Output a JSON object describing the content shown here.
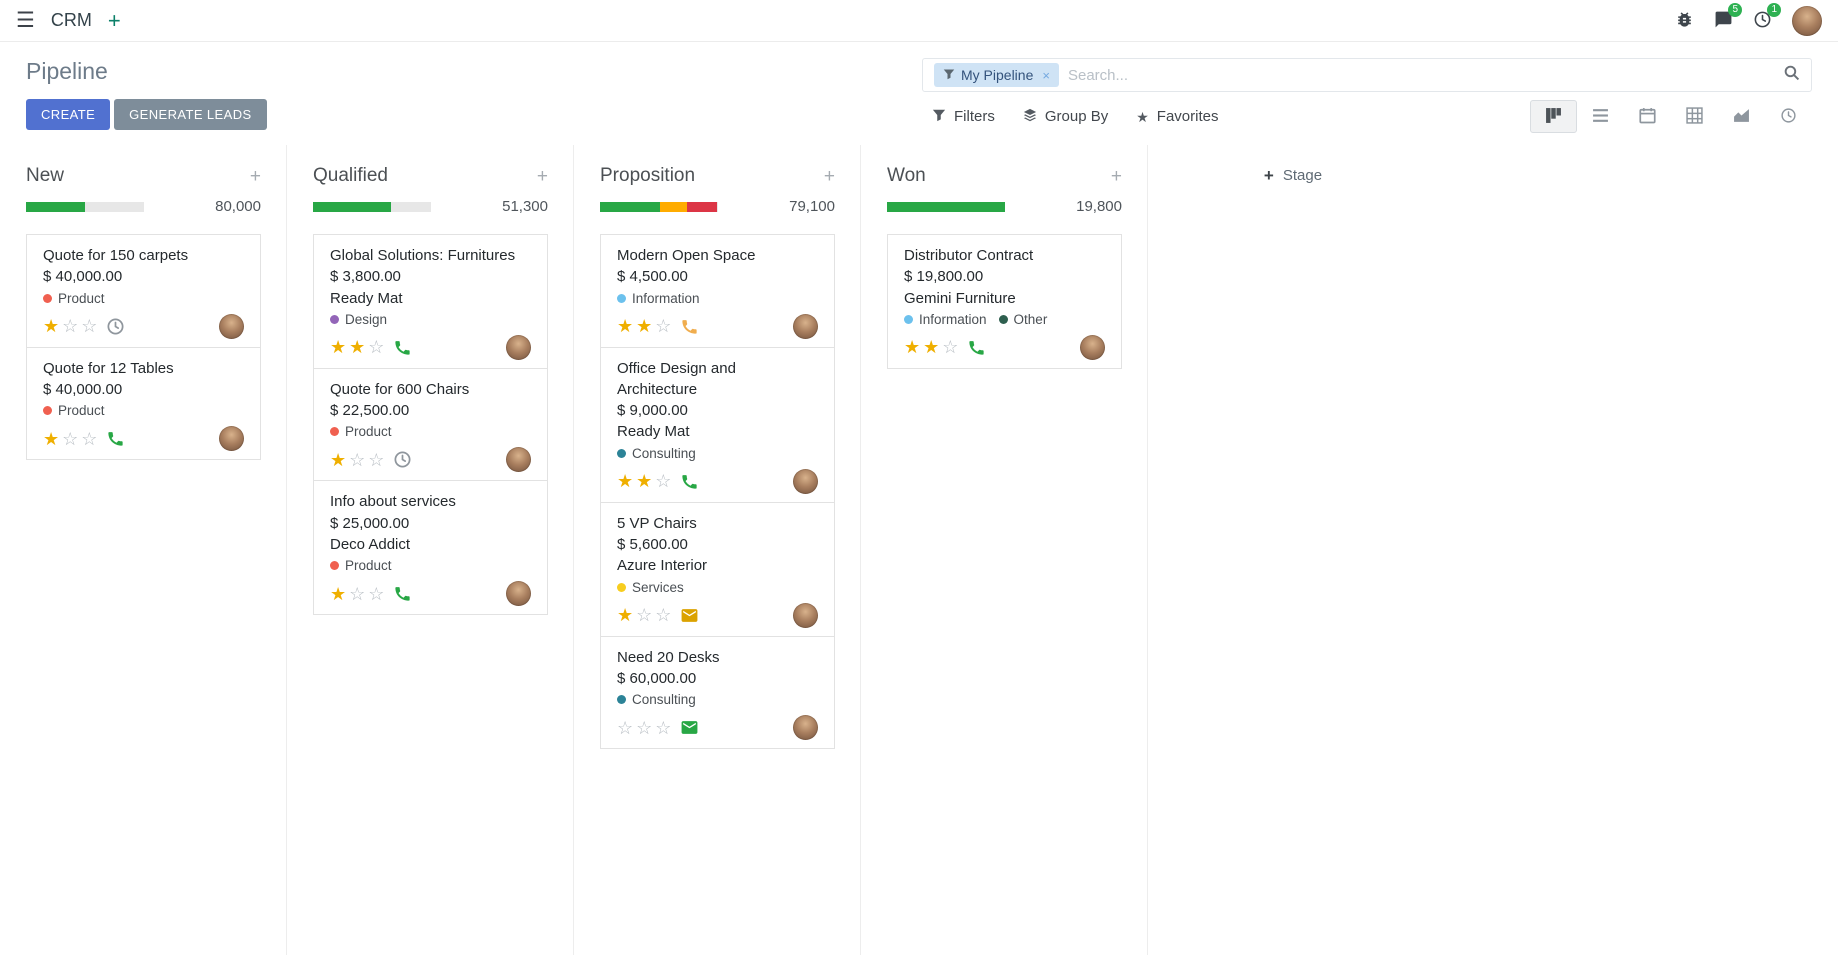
{
  "colors": {
    "primary": "#5171d0",
    "secondary_button": "#7e8d9a",
    "success": "#28a745",
    "warning": "#ffac00",
    "danger": "#dc3545",
    "star_gold": "#efaf00",
    "facet_bg": "#cfe3f5",
    "badge_green": "#2eb152"
  },
  "icons": {
    "nav_left": [
      "hamburger-icon",
      "plus-icon"
    ],
    "nav_right": [
      "bug-icon",
      "chat-bubble-icon",
      "activity-clock-icon",
      "user-avatar"
    ],
    "search": [
      "filter-funnel-icon",
      "magnifier-icon"
    ],
    "menus": [
      "filter-funnel-icon",
      "layers-icon",
      "star-icon"
    ],
    "view_switcher": [
      "kanban-view-icon",
      "list-view-icon",
      "calendar-view-icon",
      "pivot-view-icon",
      "graph-view-icon",
      "activity-view-icon"
    ],
    "card_activities": [
      "clock-icon",
      "phone-icon",
      "envelope-icon"
    ]
  },
  "navbar": {
    "app_name": "CRM",
    "messages_badge": "5",
    "activities_badge": "1"
  },
  "control_panel": {
    "title": "Pipeline",
    "buttons": {
      "create": "CREATE",
      "generate_leads": "GENERATE LEADS"
    },
    "search": {
      "facet_label": "My Pipeline",
      "remove_facet": "×",
      "placeholder": "Search..."
    },
    "menus": {
      "filters": "Filters",
      "group_by": "Group By",
      "favorites": "Favorites"
    }
  },
  "board": {
    "add_stage_label": "Stage",
    "columns": [
      {
        "name": "New",
        "total": "80,000",
        "progress": [
          {
            "name": "success",
            "color": "#28a745",
            "pct": 50
          }
        ],
        "cards": [
          {
            "title": "Quote for 150 carpets",
            "amount": "$ 40,000.00",
            "partner": "",
            "tags": [
              {
                "label": "Product",
                "color": "#f06050"
              }
            ],
            "stars": 1,
            "activity": {
              "type": "clock",
              "color": "#8f969d"
            }
          },
          {
            "title": "Quote for 12 Tables",
            "amount": "$ 40,000.00",
            "partner": "",
            "tags": [
              {
                "label": "Product",
                "color": "#f06050"
              }
            ],
            "stars": 1,
            "activity": {
              "type": "phone",
              "color": "#28a745"
            }
          }
        ]
      },
      {
        "name": "Qualified",
        "total": "51,300",
        "progress": [
          {
            "name": "success",
            "color": "#28a745",
            "pct": 66
          }
        ],
        "cards": [
          {
            "title": "Global Solutions: Furnitures",
            "amount": "$ 3,800.00",
            "partner": "Ready Mat",
            "tags": [
              {
                "label": "Design",
                "color": "#9365b8"
              }
            ],
            "stars": 2,
            "activity": {
              "type": "phone",
              "color": "#28a745"
            }
          },
          {
            "title": "Quote for 600 Chairs",
            "amount": "$ 22,500.00",
            "partner": "",
            "tags": [
              {
                "label": "Product",
                "color": "#f06050"
              }
            ],
            "stars": 1,
            "activity": {
              "type": "clock",
              "color": "#8f969d"
            }
          },
          {
            "title": "Info about services",
            "amount": "$ 25,000.00",
            "partner": "Deco Addict",
            "tags": [
              {
                "label": "Product",
                "color": "#f06050"
              }
            ],
            "stars": 1,
            "activity": {
              "type": "phone",
              "color": "#28a745"
            }
          }
        ]
      },
      {
        "name": "Proposition",
        "total": "79,100",
        "progress": [
          {
            "name": "success",
            "color": "#28a745",
            "pct": 51
          },
          {
            "name": "warning",
            "color": "#ffac00",
            "pct": 23
          },
          {
            "name": "danger",
            "color": "#dc3545",
            "pct": 26
          }
        ],
        "cards": [
          {
            "title": "Modern Open Space",
            "amount": "$ 4,500.00",
            "partner": "",
            "tags": [
              {
                "label": "Information",
                "color": "#6cc1ed"
              }
            ],
            "stars": 2,
            "activity": {
              "type": "phone",
              "color": "#f0ad4e"
            }
          },
          {
            "title": "Office Design and Architecture",
            "amount": "$ 9,000.00",
            "partner": "Ready Mat",
            "tags": [
              {
                "label": "Consulting",
                "color": "#2c8397"
              }
            ],
            "stars": 2,
            "activity": {
              "type": "phone",
              "color": "#28a745"
            }
          },
          {
            "title": "5 VP Chairs",
            "amount": "$ 5,600.00",
            "partner": "Azure Interior",
            "tags": [
              {
                "label": "Services",
                "color": "#f7cd1f"
              }
            ],
            "stars": 1,
            "activity": {
              "type": "envelope",
              "color": "#dba201"
            }
          },
          {
            "title": "Need 20 Desks",
            "amount": "$ 60,000.00",
            "partner": "",
            "tags": [
              {
                "label": "Consulting",
                "color": "#2c8397"
              }
            ],
            "stars": 0,
            "activity": {
              "type": "envelope",
              "color": "#28a745"
            }
          }
        ]
      },
      {
        "name": "Won",
        "total": "19,800",
        "progress": [
          {
            "name": "success",
            "color": "#28a745",
            "pct": 100
          }
        ],
        "cards": [
          {
            "title": "Distributor Contract",
            "amount": "$ 19,800.00",
            "partner": "Gemini Furniture",
            "tags": [
              {
                "label": "Information",
                "color": "#6cc1ed"
              },
              {
                "label": "Other",
                "color": "#2e5f4f"
              }
            ],
            "stars": 2,
            "activity": {
              "type": "phone",
              "color": "#28a745"
            }
          }
        ]
      }
    ]
  }
}
